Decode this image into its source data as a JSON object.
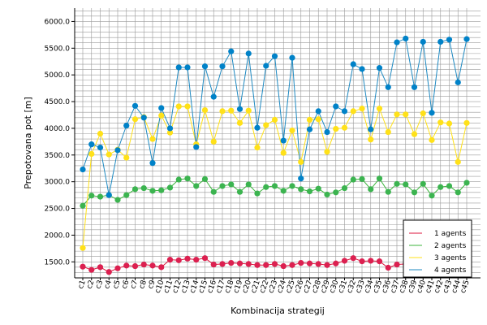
{
  "chart_data": {
    "type": "line",
    "xlabel": "Kombinacija strategij",
    "ylabel": "Prepotovana pot [m]",
    "ylim": [
      1200,
      6250
    ],
    "y_ticks": [
      1500,
      2000,
      2500,
      3000,
      3500,
      4000,
      4500,
      5000,
      5500,
      6000
    ],
    "y_tick_labels": [
      "1500.0",
      "2000.0",
      "2500.0",
      "3000.0",
      "3500.0",
      "4000.0",
      "4500.0",
      "5000.0",
      "5500.0",
      "6000.0"
    ],
    "grid": true,
    "legend_position": "bottom-right",
    "categories": [
      "c1",
      "c2",
      "c3",
      "c4",
      "c5",
      "c6",
      "c7",
      "c8",
      "c9",
      "c10",
      "c11",
      "c12",
      "c13",
      "c14",
      "c15",
      "c16",
      "c17",
      "c18",
      "c19",
      "c20",
      "c21",
      "c22",
      "c23",
      "c24",
      "c25",
      "c26",
      "c27",
      "c28",
      "c29",
      "c30",
      "c31",
      "c32",
      "c33",
      "c34",
      "c35",
      "c36",
      "c37",
      "c38",
      "c39",
      "c40",
      "c41",
      "c42",
      "c43",
      "c44",
      "c45"
    ],
    "series": [
      {
        "name": "1 agents",
        "color": "#dc143c",
        "marker": "#dc2050",
        "values": [
          1410,
          1350,
          1400,
          1310,
          1380,
          1430,
          1420,
          1450,
          1430,
          1400,
          1540,
          1530,
          1560,
          1540,
          1570,
          1450,
          1460,
          1480,
          1470,
          1460,
          1440,
          1440,
          1460,
          1420,
          1440,
          1480,
          1470,
          1460,
          1440,
          1470,
          1520,
          1570,
          1510,
          1520,
          1510,
          1390,
          1450,
          1460,
          1490,
          1460,
          1480,
          1440,
          1440,
          1450,
          1440
        ]
      },
      {
        "name": "2 agents",
        "color": "#3cb43c",
        "marker": "#3cb450",
        "values": [
          2550,
          2740,
          2720,
          2750,
          2660,
          2750,
          2860,
          2880,
          2830,
          2840,
          2890,
          3040,
          3060,
          2920,
          3050,
          2810,
          2920,
          2950,
          2810,
          2950,
          2780,
          2900,
          2920,
          2830,
          2920,
          2860,
          2820,
          2870,
          2760,
          2800,
          2880,
          3040,
          3050,
          2860,
          3060,
          2810,
          2960,
          2950,
          2800,
          2960,
          2740,
          2900,
          2920,
          2800,
          2980
        ]
      },
      {
        "name": "3 agents",
        "color": "#ffe119",
        "marker": "#ffe119",
        "values": [
          1760,
          3520,
          3900,
          3510,
          3600,
          3450,
          4170,
          4210,
          3800,
          4240,
          3920,
          4410,
          4410,
          3700,
          4340,
          3750,
          4320,
          4330,
          4100,
          4330,
          3640,
          4060,
          4160,
          3540,
          3960,
          3370,
          4160,
          4170,
          3560,
          3990,
          4010,
          4320,
          4370,
          3790,
          4370,
          3930,
          4260,
          4260,
          3890,
          4280,
          3780,
          4110,
          4090,
          3370,
          4100
        ]
      },
      {
        "name": "4 agents",
        "color": "#1f8ac2",
        "marker": "#0082c8",
        "values": [
          3230,
          3700,
          3640,
          2750,
          3590,
          4050,
          4420,
          4200,
          3350,
          4380,
          4000,
          5140,
          5140,
          3650,
          5160,
          4590,
          5160,
          5440,
          4360,
          5400,
          4010,
          5170,
          5350,
          3770,
          5320,
          3060,
          3980,
          4320,
          3930,
          4410,
          4320,
          5200,
          5110,
          3980,
          5130,
          4770,
          5610,
          5680,
          4770,
          5620,
          4290,
          5620,
          5660,
          4860,
          5670
        ]
      }
    ]
  }
}
